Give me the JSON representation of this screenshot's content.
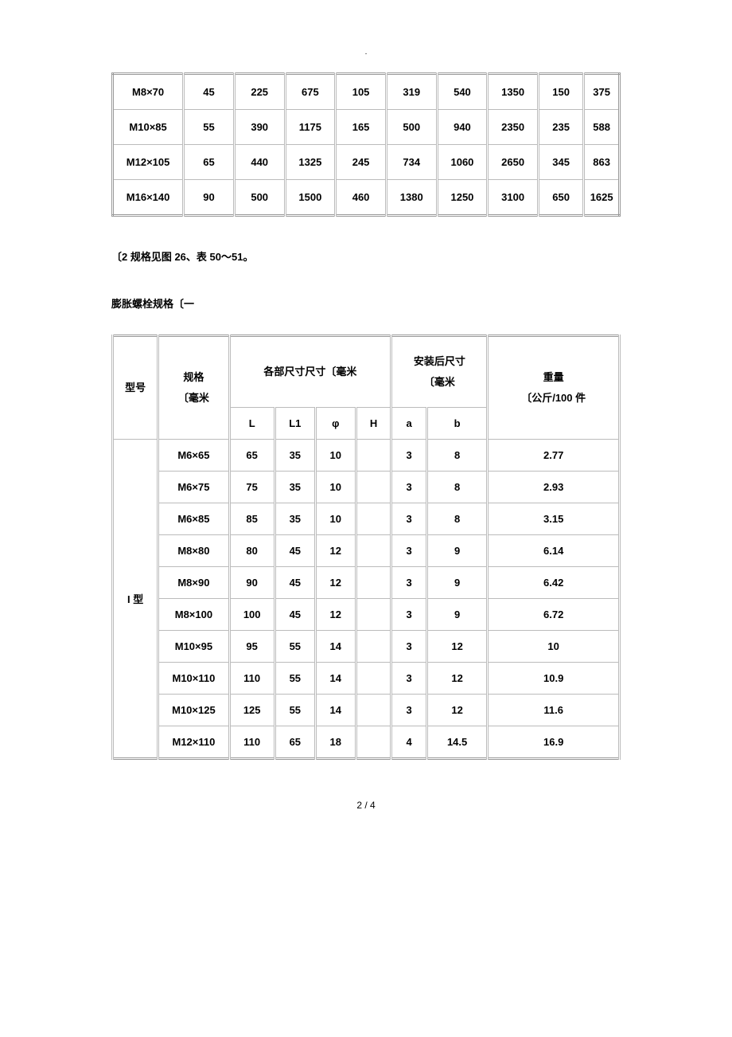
{
  "top_dot": ".",
  "table1": {
    "col_widths": [
      "14%",
      "10%",
      "10%",
      "10%",
      "10%",
      "10%",
      "10%",
      "10%",
      "9%",
      "7%"
    ],
    "rows": [
      [
        "M8×70",
        "45",
        "225",
        "675",
        "105",
        "319",
        "540",
        "1350",
        "150",
        "375"
      ],
      [
        "M10×85",
        "55",
        "390",
        "1175",
        "165",
        "500",
        "940",
        "2350",
        "235",
        "588"
      ],
      [
        "M12×105",
        "65",
        "440",
        "1325",
        "245",
        "734",
        "1060",
        "2650",
        "345",
        "863"
      ],
      [
        "M16×140",
        "90",
        "500",
        "1500",
        "460",
        "1380",
        "1250",
        "3100",
        "650",
        "1625"
      ]
    ]
  },
  "middle_text": "〔2 规格见图 26、表 50～51。",
  "section_title": "膨胀螺栓规格〔一",
  "table2": {
    "headers": {
      "model": "型号",
      "spec": "规格\n〔毫米",
      "dims_group": "各部尺寸尺寸〔毫米",
      "install_group": "安装后尺寸\n〔毫米",
      "L": "L",
      "L1": "L1",
      "phi": "φ",
      "H": "H",
      "a": "a",
      "b": "b",
      "weight": "重量\n〔公斤/100 件"
    },
    "model_label": "I 型",
    "rows": [
      [
        "M6×65",
        "65",
        "35",
        "10",
        "",
        "3",
        "8",
        "2.77"
      ],
      [
        "M6×75",
        "75",
        "35",
        "10",
        "",
        "3",
        "8",
        "2.93"
      ],
      [
        "M6×85",
        "85",
        "35",
        "10",
        "",
        "3",
        "8",
        "3.15"
      ],
      [
        "M8×80",
        "80",
        "45",
        "12",
        "",
        "3",
        "9",
        "6.14"
      ],
      [
        "M8×90",
        "90",
        "45",
        "12",
        "",
        "3",
        "9",
        "6.42"
      ],
      [
        "M8×100",
        "100",
        "45",
        "12",
        "",
        "3",
        "9",
        "6.72"
      ],
      [
        "M10×95",
        "95",
        "55",
        "14",
        "",
        "3",
        "12",
        "10"
      ],
      [
        "M10×110",
        "110",
        "55",
        "14",
        "",
        "3",
        "12",
        "10.9"
      ],
      [
        "M10×125",
        "125",
        "55",
        "14",
        "",
        "3",
        "12",
        "11.6"
      ],
      [
        "M12×110",
        "110",
        "65",
        "18",
        "",
        "4",
        "14.5",
        "16.9"
      ]
    ]
  },
  "page_num": "2 / 4"
}
